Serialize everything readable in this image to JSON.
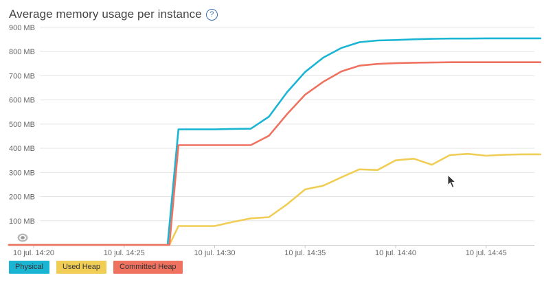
{
  "header": {
    "title": "Average memory usage per instance",
    "help_icon": "?"
  },
  "colors": {
    "grid": "#e6e6e6",
    "axis_text": "#666666",
    "baseline": "#cccccc"
  },
  "legend": [
    {
      "label": "Physical",
      "color": "#1bb5d4"
    },
    {
      "label": "Used Heap",
      "color": "#f0cd55"
    },
    {
      "label": "Committed Heap",
      "color": "#ef7260"
    }
  ],
  "chart_data": {
    "type": "line",
    "title": "Average memory usage per instance",
    "xlabel": "",
    "ylabel": "",
    "unit": "MB",
    "x_domain_minutes": [
      0,
      28
    ],
    "ylim": [
      0,
      900
    ],
    "y_ticks": [
      {
        "value": 100,
        "label": "100 MB"
      },
      {
        "value": 200,
        "label": "200 MB"
      },
      {
        "value": 300,
        "label": "300 MB"
      },
      {
        "value": 400,
        "label": "400 MB"
      },
      {
        "value": 500,
        "label": "500 MB"
      },
      {
        "value": 600,
        "label": "600 MB"
      },
      {
        "value": 700,
        "label": "700 MB"
      },
      {
        "value": 800,
        "label": "800 MB"
      },
      {
        "value": 900,
        "label": "900 MB"
      }
    ],
    "x_ticks": [
      {
        "value": 0,
        "label": "10 jul. 14:20"
      },
      {
        "value": 5,
        "label": "10 jul. 14:25"
      },
      {
        "value": 10,
        "label": "10 jul. 14:30"
      },
      {
        "value": 15,
        "label": "10 jul. 14:35"
      },
      {
        "value": 20,
        "label": "10 jul. 14:40"
      },
      {
        "value": 25,
        "label": "10 jul. 14:45"
      }
    ],
    "grid": true,
    "legend_position": "bottom-left",
    "series": [
      {
        "name": "Physical",
        "color": "#1bb5d4",
        "points": [
          [
            -1.5,
            0
          ],
          [
            7.4,
            0
          ],
          [
            8,
            478
          ],
          [
            9,
            478
          ],
          [
            10,
            478
          ],
          [
            11,
            480
          ],
          [
            12,
            481
          ],
          [
            13,
            531
          ],
          [
            14,
            632
          ],
          [
            15,
            716
          ],
          [
            16,
            775
          ],
          [
            17,
            815
          ],
          [
            18,
            839
          ],
          [
            19,
            846
          ],
          [
            20,
            848
          ],
          [
            21,
            851
          ],
          [
            22,
            853
          ],
          [
            23,
            854
          ],
          [
            24,
            854
          ],
          [
            25,
            855
          ],
          [
            26,
            855
          ],
          [
            27,
            855
          ],
          [
            28,
            855
          ]
        ]
      },
      {
        "name": "Used Heap",
        "color": "#f0cd55",
        "points": [
          [
            -1.5,
            0
          ],
          [
            7.5,
            0
          ],
          [
            8,
            78
          ],
          [
            9,
            78
          ],
          [
            10,
            78
          ],
          [
            11,
            95
          ],
          [
            12,
            110
          ],
          [
            13,
            115
          ],
          [
            14,
            168
          ],
          [
            15,
            230
          ],
          [
            16,
            245
          ],
          [
            17,
            280
          ],
          [
            18,
            313
          ],
          [
            19,
            310
          ],
          [
            20,
            350
          ],
          [
            21,
            357
          ],
          [
            22,
            332
          ],
          [
            23,
            372
          ],
          [
            24,
            377
          ],
          [
            25,
            369
          ],
          [
            26,
            373
          ],
          [
            27,
            375
          ],
          [
            28,
            375
          ]
        ]
      },
      {
        "name": "Committed Heap",
        "color": "#ef7260",
        "points": [
          [
            -1.5,
            0
          ],
          [
            7.5,
            0
          ],
          [
            8,
            413
          ],
          [
            9,
            413
          ],
          [
            10,
            413
          ],
          [
            11,
            413
          ],
          [
            12,
            413
          ],
          [
            13,
            452
          ],
          [
            14,
            541
          ],
          [
            15,
            622
          ],
          [
            16,
            675
          ],
          [
            17,
            718
          ],
          [
            18,
            742
          ],
          [
            19,
            749
          ],
          [
            20,
            752
          ],
          [
            21,
            754
          ],
          [
            22,
            755
          ],
          [
            23,
            756
          ],
          [
            24,
            756
          ],
          [
            25,
            756
          ],
          [
            26,
            756
          ],
          [
            27,
            756
          ],
          [
            28,
            756
          ]
        ]
      }
    ]
  }
}
